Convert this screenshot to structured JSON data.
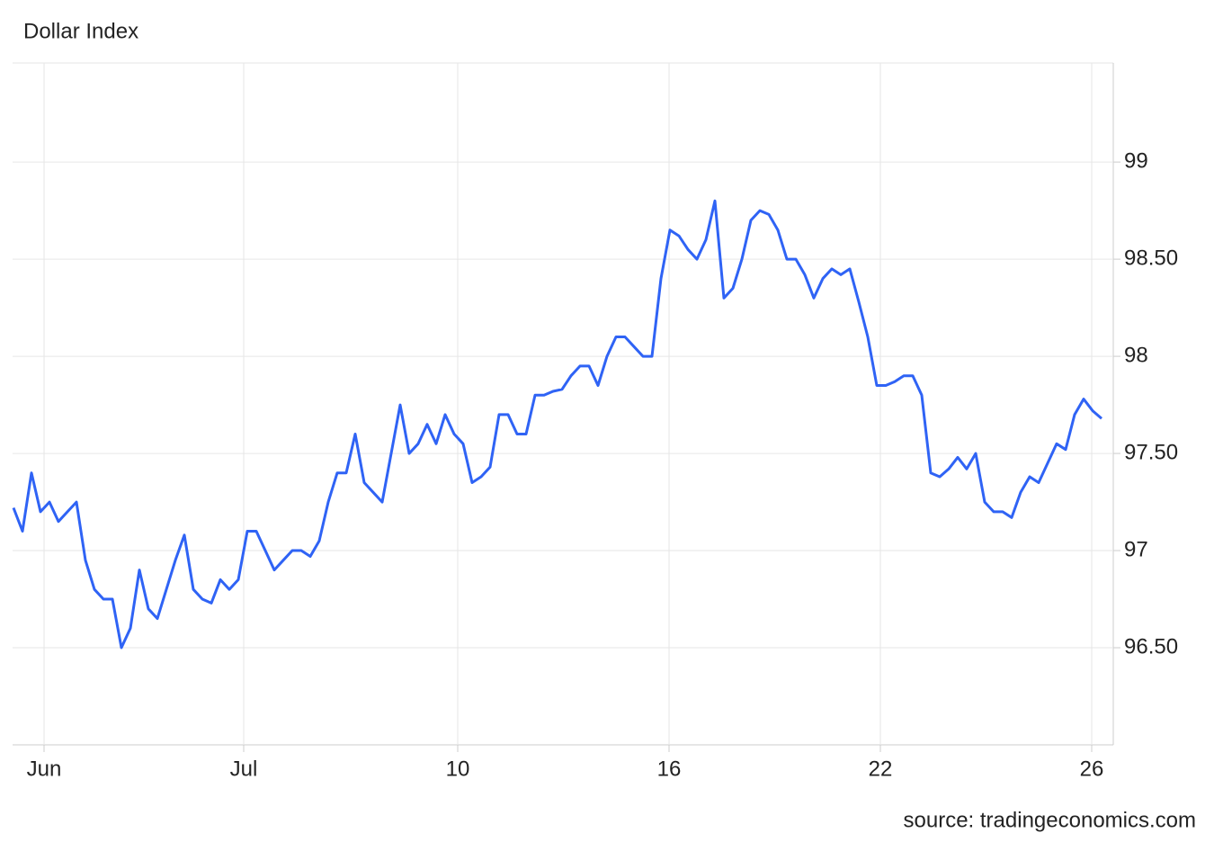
{
  "chart_data": {
    "type": "line",
    "title": "Dollar Index",
    "source": "source: tradingeconomics.com",
    "x": [
      0,
      1,
      2,
      3,
      4,
      5,
      6,
      7,
      8,
      9,
      10,
      11,
      12,
      13,
      14,
      15,
      16,
      17,
      18,
      19,
      20,
      21,
      22,
      23,
      24,
      25,
      26,
      27,
      28,
      29,
      30,
      31,
      32,
      33,
      34,
      35,
      36,
      37,
      38,
      39,
      40,
      41,
      42,
      43,
      44,
      45,
      46,
      47,
      48,
      49,
      50,
      51,
      52,
      53,
      54,
      55,
      56,
      57,
      58,
      59,
      60,
      61,
      62,
      63,
      64,
      65,
      66,
      67,
      68,
      69,
      70,
      71,
      72,
      73,
      74,
      75,
      76,
      77,
      78,
      79,
      80,
      81,
      82,
      83,
      84,
      85,
      86,
      87,
      88,
      89,
      90,
      91,
      92,
      93,
      94,
      95,
      96,
      97,
      98,
      99,
      100,
      101,
      102,
      103,
      104,
      105,
      106,
      107,
      108,
      109,
      110,
      111,
      112,
      113,
      114,
      115,
      116,
      117,
      118,
      119,
      120,
      121
    ],
    "series": [
      {
        "name": "Dollar Index",
        "color": "#2f63f5",
        "values": [
          97.22,
          97.1,
          97.4,
          97.2,
          97.25,
          97.15,
          97.2,
          97.25,
          96.95,
          96.8,
          96.75,
          96.75,
          96.5,
          96.6,
          96.9,
          96.7,
          96.65,
          96.8,
          96.95,
          97.08,
          96.8,
          96.75,
          96.73,
          96.85,
          96.8,
          96.85,
          97.1,
          97.1,
          97.0,
          96.9,
          96.95,
          97.0,
          97.0,
          96.97,
          97.05,
          97.25,
          97.4,
          97.4,
          97.6,
          97.35,
          97.3,
          97.25,
          97.5,
          97.75,
          97.5,
          97.55,
          97.65,
          97.55,
          97.7,
          97.6,
          97.55,
          97.35,
          97.38,
          97.43,
          97.7,
          97.7,
          97.6,
          97.6,
          97.8,
          97.8,
          97.82,
          97.83,
          97.9,
          97.95,
          97.95,
          97.85,
          98.0,
          98.1,
          98.1,
          98.05,
          98.0,
          98.0,
          98.4,
          98.65,
          98.62,
          98.55,
          98.5,
          98.6,
          98.8,
          98.3,
          98.35,
          98.5,
          98.7,
          98.75,
          98.73,
          98.65,
          98.5,
          98.5,
          98.42,
          98.3,
          98.4,
          98.45,
          98.42,
          98.45,
          98.28,
          98.1,
          97.85,
          97.85,
          97.87,
          97.9,
          97.9,
          97.8,
          97.4,
          97.38,
          97.42,
          97.48,
          97.42,
          97.5,
          97.25,
          97.2,
          97.2,
          97.17,
          97.3,
          97.38,
          97.35,
          97.45,
          97.55,
          97.52,
          97.7,
          97.78,
          97.72,
          97.68
        ]
      }
    ],
    "xlim": [
      -0.1,
      122.3
    ],
    "xticks": [
      {
        "value": 3.4,
        "label": "Jun"
      },
      {
        "value": 25.6,
        "label": "Jul"
      },
      {
        "value": 49.4,
        "label": "10"
      },
      {
        "value": 72.9,
        "label": "16"
      },
      {
        "value": 96.4,
        "label": "22"
      },
      {
        "value": 119.9,
        "label": "26"
      }
    ],
    "ylim": [
      96,
      99.51
    ],
    "yticks": [
      {
        "value": 96.5,
        "label": "96.50"
      },
      97,
      {
        "value": 97.5,
        "label": "97.50"
      },
      98,
      {
        "value": 98.5,
        "label": "98.50"
      },
      99
    ],
    "grid": true
  }
}
